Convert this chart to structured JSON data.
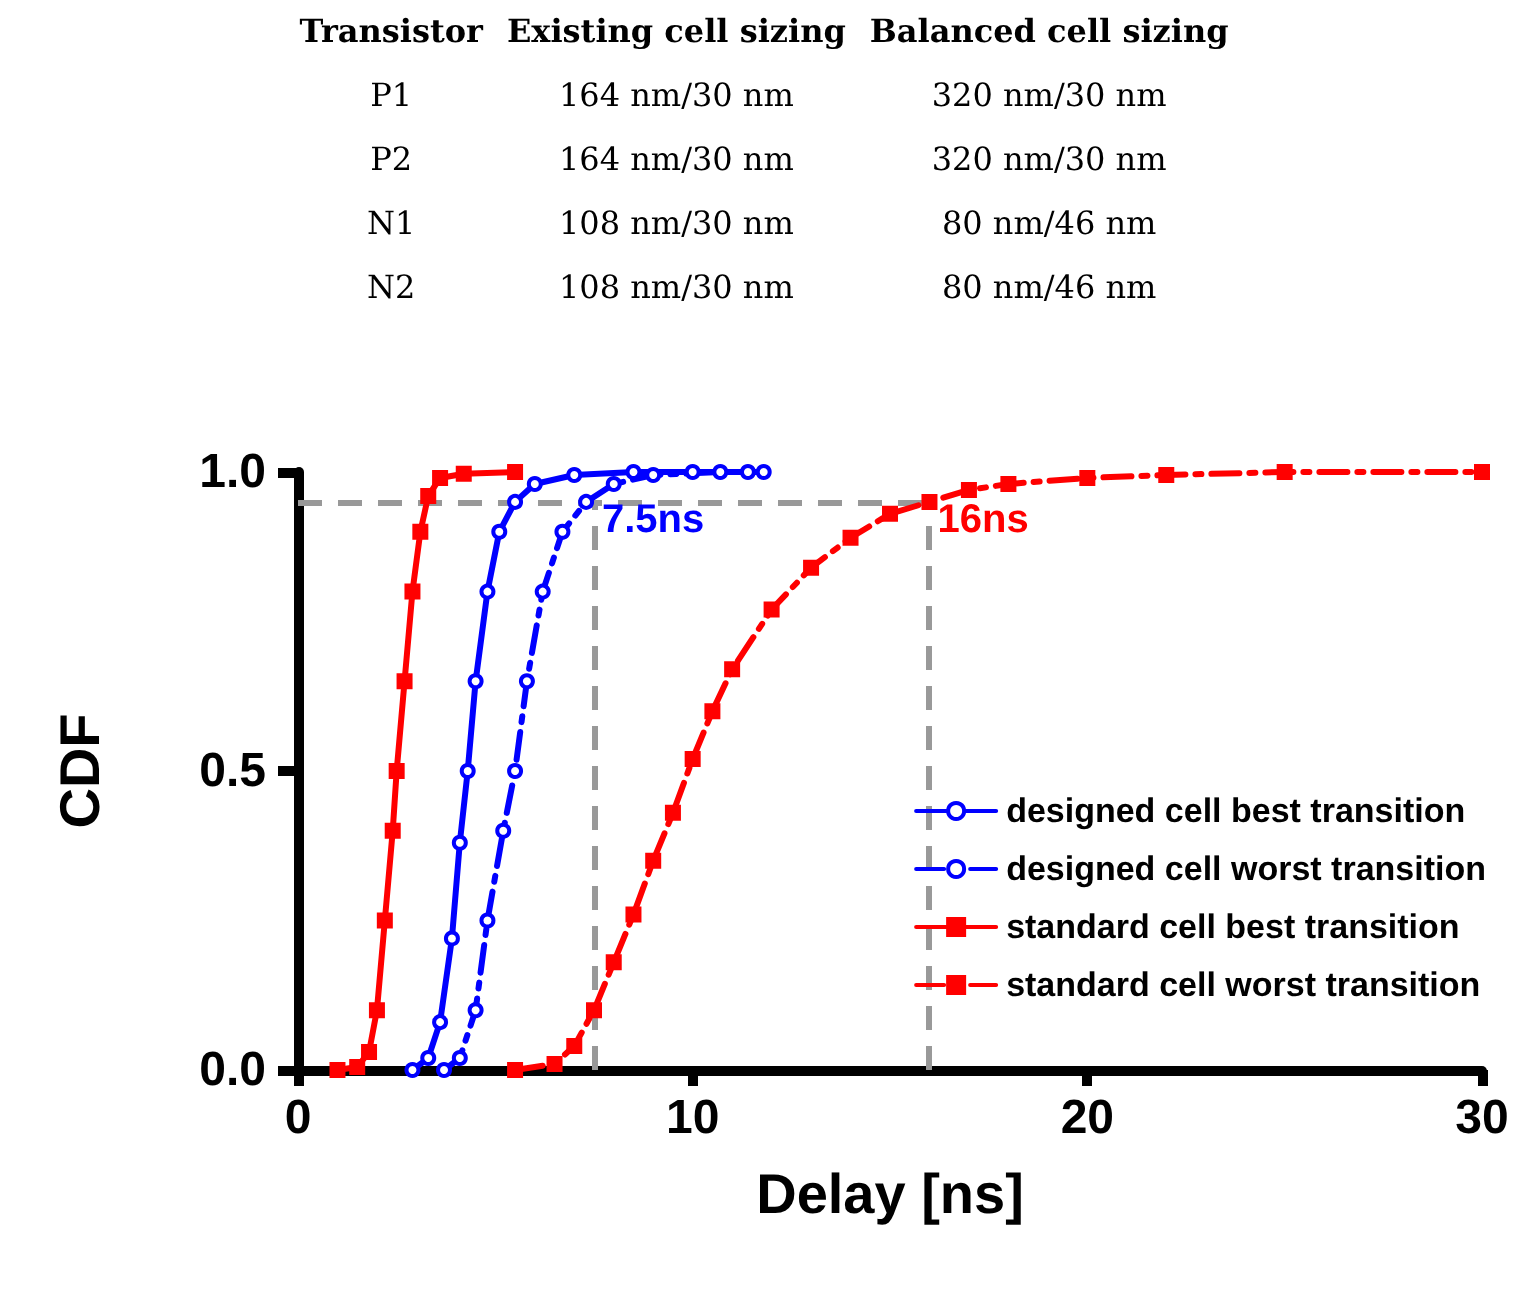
{
  "chart_data": [
    {
      "type": "other",
      "categories": [
        "Transistor",
        "Existing cell sizing",
        "Balanced cell sizing"
      ],
      "y_categories": [
        "P1",
        "P2",
        "N1",
        "N2"
      ],
      "cell_labels": [
        [
          "164 nm/30 nm",
          "320 nm/30 nm"
        ],
        [
          "164 nm/30 nm",
          "320 nm/30 nm"
        ],
        [
          "108 nm/30 nm",
          "80 nm/46 nm"
        ],
        [
          "108 nm/30 nm",
          "80 nm/46 nm"
        ]
      ]
    },
    {
      "type": "line",
      "xlabel": "Delay [ns]",
      "ylabel": "CDF",
      "xlim": [
        0,
        30
      ],
      "xticks": [
        0,
        10,
        20,
        30
      ],
      "ylim": [
        0,
        1
      ],
      "yticks": [
        {
          "value": 0,
          "label": "0.0"
        },
        {
          "value": 0.5,
          "label": "0.5"
        },
        {
          "value": 1,
          "label": "1.0"
        }
      ],
      "grid": false,
      "legend": "bottom right",
      "series": [
        {
          "name": "designed cell best transition",
          "color": "#0000ff",
          "marker": "circle",
          "line_style": "solid",
          "x": [
            2.9,
            3.3,
            3.6,
            3.9,
            4.1,
            4.3,
            4.5,
            4.8,
            5.1,
            5.5,
            6,
            7,
            8.5,
            10,
            11.8
          ],
          "values": [
            0,
            0.02,
            0.08,
            0.22,
            0.38,
            0.5,
            0.65,
            0.8,
            0.9,
            0.95,
            0.98,
            0.995,
            1,
            1,
            1
          ]
        },
        {
          "name": "designed cell worst transition",
          "color": "#0000ff",
          "marker": "circle",
          "line_style": "dashed",
          "x": [
            3.7,
            4.1,
            4.5,
            4.8,
            5.2,
            5.5,
            5.8,
            6.2,
            6.7,
            7.3,
            8,
            9,
            10.7,
            11.4
          ],
          "values": [
            0,
            0.02,
            0.1,
            0.25,
            0.4,
            0.5,
            0.65,
            0.8,
            0.9,
            0.95,
            0.98,
            0.995,
            1,
            1
          ]
        },
        {
          "name": "standard cell best transition",
          "color": "#ff0000",
          "marker": "square",
          "line_style": "solid",
          "x": [
            1,
            1.5,
            1.8,
            2,
            2.2,
            2.4,
            2.5,
            2.7,
            2.9,
            3.1,
            3.3,
            3.6,
            4.2,
            5.5
          ],
          "values": [
            0,
            0.005,
            0.03,
            0.1,
            0.25,
            0.4,
            0.5,
            0.65,
            0.8,
            0.9,
            0.96,
            0.99,
            0.997,
            1
          ]
        },
        {
          "name": "standard cell worst transition",
          "color": "#ff0000",
          "marker": "square",
          "line_style": "dashed",
          "x": [
            5.5,
            6.5,
            7,
            7.5,
            8,
            8.5,
            9,
            9.5,
            10,
            10.5,
            11,
            12,
            13,
            14,
            15,
            16,
            17,
            18,
            20,
            22,
            25,
            30
          ],
          "values": [
            0,
            0.01,
            0.04,
            0.1,
            0.18,
            0.26,
            0.35,
            0.43,
            0.52,
            0.6,
            0.67,
            0.77,
            0.84,
            0.89,
            0.93,
            0.95,
            0.97,
            0.98,
            0.99,
            0.995,
            1,
            1
          ]
        }
      ],
      "ref_lines": [
        {
          "axis": "y",
          "value": 0.95,
          "color": "#999999",
          "line_style": "dashed"
        },
        {
          "axis": "x",
          "value": 7.5,
          "label": "7.5ns",
          "color": "#999999",
          "line_style": "dashed"
        },
        {
          "axis": "x",
          "value": 16,
          "label": "16ns",
          "color": "#999999",
          "line_style": "dashed"
        }
      ]
    }
  ]
}
